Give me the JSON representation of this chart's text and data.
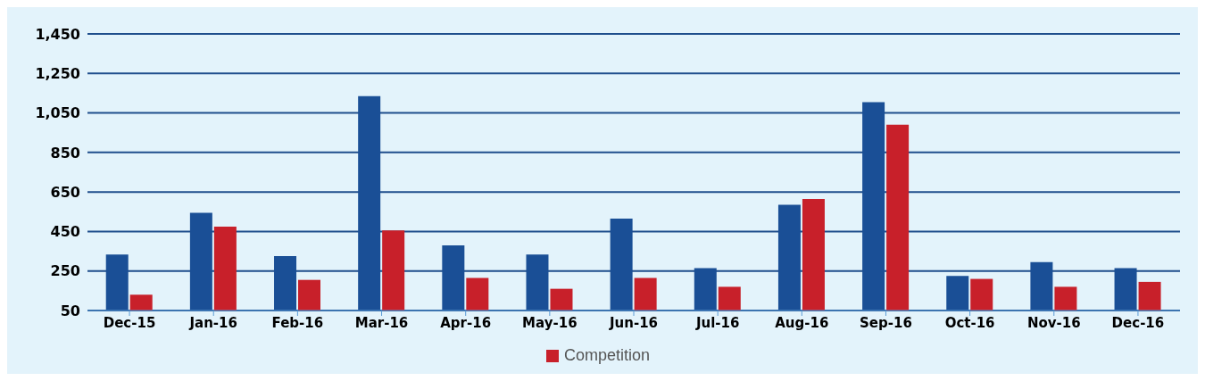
{
  "chart_data": {
    "type": "bar",
    "categories": [
      "Dec-15",
      "Jan-16",
      "Feb-16",
      "Mar-16",
      "Apr-16",
      "May-16",
      "Jun-16",
      "Jul-16",
      "Aug-16",
      "Sep-16",
      "Oct-16",
      "Nov-16",
      "Dec-16"
    ],
    "series": [
      {
        "color": "#1a4f96",
        "values": [
          333,
          545,
          325,
          1135,
          380,
          333,
          515,
          265,
          585,
          1105,
          225,
          295,
          265
        ]
      },
      {
        "name": "Competition",
        "color": "#c8202a",
        "values": [
          130,
          475,
          205,
          455,
          215,
          160,
          215,
          170,
          615,
          990,
          210,
          170,
          195
        ]
      }
    ],
    "ylim": [
      50,
      1450
    ],
    "yticks": [
      {
        "value": 50,
        "label": "50"
      },
      {
        "value": 250,
        "label": "250"
      },
      {
        "value": 450,
        "label": "450"
      },
      {
        "value": 650,
        "label": "650"
      },
      {
        "value": 850,
        "label": "850"
      },
      {
        "value": 1050,
        "label": "1,050"
      },
      {
        "value": 1250,
        "label": "1,250"
      },
      {
        "value": 1450,
        "label": "1,450"
      }
    ],
    "grid": "y",
    "legend": "bottom"
  }
}
